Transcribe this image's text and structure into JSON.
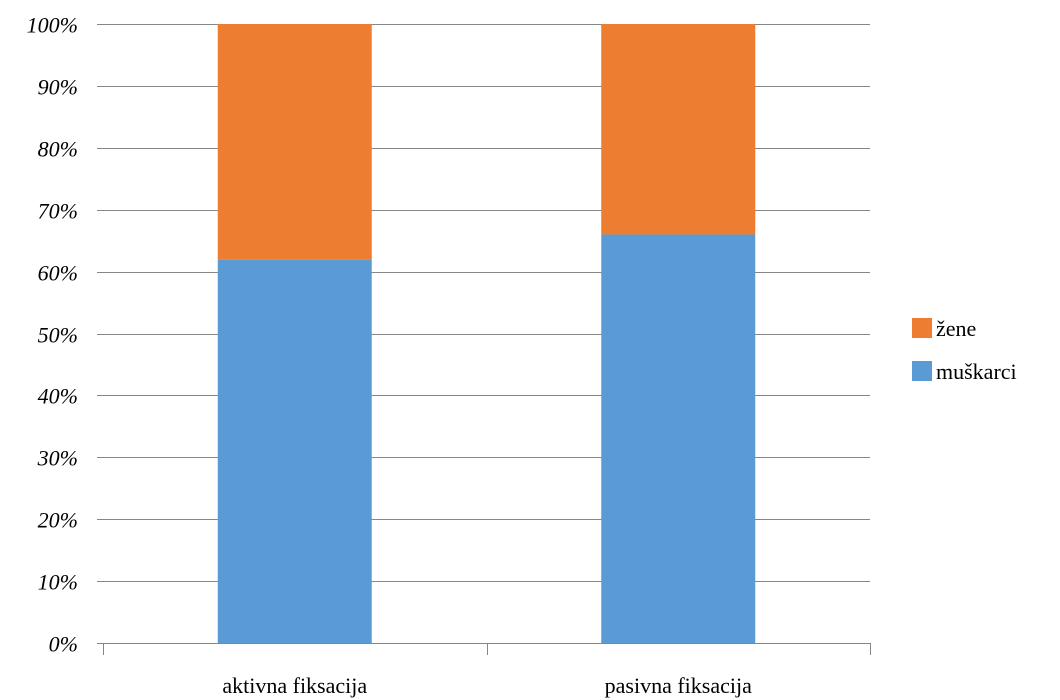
{
  "chart_data": {
    "type": "bar",
    "stacked": true,
    "percent": true,
    "categories": [
      "aktivna fiksacija",
      "pasivna fiksacija"
    ],
    "series": [
      {
        "name": "muškarci",
        "color": "#5b9bd5",
        "values": [
          62,
          66
        ]
      },
      {
        "name": "žene",
        "color": "#ed7d31",
        "values": [
          38,
          34
        ]
      }
    ],
    "y_ticks": [
      "0%",
      "10%",
      "20%",
      "30%",
      "40%",
      "50%",
      "60%",
      "70%",
      "80%",
      "90%",
      "100%"
    ],
    "ylim": [
      0,
      100
    ],
    "grid": true,
    "legend_position": "right",
    "legend_order": [
      "žene",
      "muškarci"
    ],
    "title": "",
    "xlabel": "",
    "ylabel": ""
  }
}
